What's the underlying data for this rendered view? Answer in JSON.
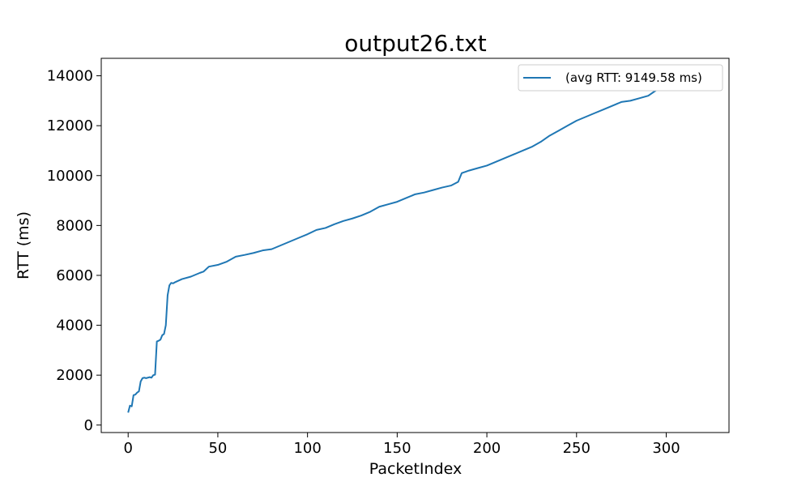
{
  "chart_data": {
    "type": "line",
    "title": "output26.txt",
    "xlabel": "PacketIndex",
    "ylabel": "RTT (ms)",
    "xlim": [
      -15,
      335
    ],
    "ylim": [
      -300,
      14700
    ],
    "x_ticks": [
      0,
      50,
      100,
      150,
      200,
      250,
      300
    ],
    "x_tick_labels": [
      "0",
      "50",
      "100",
      "150",
      "200",
      "250",
      "300"
    ],
    "y_ticks": [
      0,
      2000,
      4000,
      6000,
      8000,
      10000,
      12000,
      14000
    ],
    "y_tick_labels": [
      "0",
      "2000",
      "4000",
      "6000",
      "8000",
      "10000",
      "12000",
      "14000"
    ],
    "grid": false,
    "legend_position": "top-right",
    "series": [
      {
        "name": "(avg RTT: 9149.58 ms)",
        "color": "#1f77b4",
        "points": [
          [
            0,
            500
          ],
          [
            1,
            780
          ],
          [
            2,
            750
          ],
          [
            3,
            1200
          ],
          [
            4,
            1220
          ],
          [
            5,
            1300
          ],
          [
            6,
            1350
          ],
          [
            7,
            1750
          ],
          [
            8,
            1880
          ],
          [
            9,
            1900
          ],
          [
            10,
            1880
          ],
          [
            11,
            1900
          ],
          [
            12,
            1920
          ],
          [
            13,
            1900
          ],
          [
            14,
            2000
          ],
          [
            15,
            2020
          ],
          [
            16,
            3350
          ],
          [
            17,
            3380
          ],
          [
            18,
            3420
          ],
          [
            19,
            3600
          ],
          [
            20,
            3650
          ],
          [
            21,
            4000
          ],
          [
            22,
            5200
          ],
          [
            23,
            5600
          ],
          [
            24,
            5700
          ],
          [
            25,
            5680
          ],
          [
            26,
            5720
          ],
          [
            30,
            5850
          ],
          [
            35,
            5950
          ],
          [
            40,
            6100
          ],
          [
            42,
            6150
          ],
          [
            45,
            6350
          ],
          [
            50,
            6420
          ],
          [
            55,
            6550
          ],
          [
            60,
            6750
          ],
          [
            65,
            6820
          ],
          [
            70,
            6900
          ],
          [
            75,
            7000
          ],
          [
            80,
            7050
          ],
          [
            85,
            7200
          ],
          [
            90,
            7350
          ],
          [
            95,
            7500
          ],
          [
            100,
            7650
          ],
          [
            105,
            7820
          ],
          [
            110,
            7900
          ],
          [
            115,
            8050
          ],
          [
            120,
            8180
          ],
          [
            125,
            8280
          ],
          [
            130,
            8400
          ],
          [
            135,
            8550
          ],
          [
            140,
            8750
          ],
          [
            145,
            8850
          ],
          [
            150,
            8950
          ],
          [
            155,
            9100
          ],
          [
            160,
            9250
          ],
          [
            165,
            9320
          ],
          [
            170,
            9420
          ],
          [
            175,
            9520
          ],
          [
            180,
            9600
          ],
          [
            184,
            9750
          ],
          [
            186,
            10100
          ],
          [
            188,
            10150
          ],
          [
            190,
            10200
          ],
          [
            195,
            10300
          ],
          [
            200,
            10400
          ],
          [
            205,
            10550
          ],
          [
            210,
            10700
          ],
          [
            215,
            10850
          ],
          [
            220,
            11000
          ],
          [
            225,
            11150
          ],
          [
            230,
            11350
          ],
          [
            235,
            11600
          ],
          [
            240,
            11800
          ],
          [
            245,
            12000
          ],
          [
            250,
            12200
          ],
          [
            255,
            12350
          ],
          [
            260,
            12500
          ],
          [
            265,
            12650
          ],
          [
            270,
            12800
          ],
          [
            275,
            12950
          ],
          [
            280,
            13000
          ],
          [
            285,
            13100
          ],
          [
            290,
            13200
          ],
          [
            295,
            13450
          ],
          [
            300,
            13600
          ],
          [
            305,
            13700
          ],
          [
            310,
            13750
          ],
          [
            315,
            13850
          ]
        ]
      }
    ]
  }
}
